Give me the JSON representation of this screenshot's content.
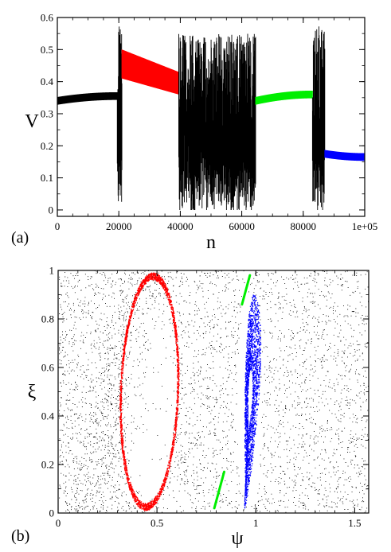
{
  "chart_data": [
    {
      "type": "line",
      "panel_label": "(a)",
      "xlabel": "n",
      "ylabel": "V",
      "xlim": [
        0,
        100000
      ],
      "ylim": [
        -0.02,
        0.6
      ],
      "x_tick_labels": [
        "0",
        "20000",
        "40000",
        "60000",
        "80000",
        "1e+05"
      ],
      "x_ticks": [
        0,
        20000,
        40000,
        60000,
        80000,
        100000
      ],
      "y_tick_labels": [
        "0",
        "0.1",
        "0.2",
        "0.3",
        "0.4",
        "0.5",
        "0.6"
      ],
      "y_ticks": [
        0,
        0.1,
        0.2,
        0.3,
        0.4,
        0.5,
        0.6
      ],
      "grid": false,
      "series": [
        {
          "color": "#000000",
          "regime": "regular",
          "x_range": [
            0,
            19500
          ],
          "center": [
            0.34,
            0.355
          ],
          "amplitude": 0.012
        },
        {
          "color": "#000000",
          "regime": "chaotic",
          "x_range": [
            19500,
            21000
          ],
          "low": 0.02,
          "high": 0.58
        },
        {
          "color": "#ff0000",
          "regime": "regular",
          "x_range": [
            21000,
            39500
          ],
          "upper": [
            0.5,
            0.43
          ],
          "lower": [
            0.41,
            0.36
          ]
        },
        {
          "color": "#000000",
          "regime": "chaotic",
          "x_range": [
            39500,
            64500
          ],
          "low": 0.0,
          "high": 0.55
        },
        {
          "color": "#00ee00",
          "regime": "regular",
          "x_range": [
            64500,
            83000
          ],
          "center": [
            0.34,
            0.36
          ],
          "amplitude": 0.012
        },
        {
          "color": "#000000",
          "regime": "chaotic",
          "x_range": [
            83000,
            87000
          ],
          "low": 0.0,
          "high": 0.58
        },
        {
          "color": "#0000ff",
          "regime": "regular",
          "x_range": [
            87000,
            100000
          ],
          "center": [
            0.175,
            0.165
          ],
          "amplitude": 0.012
        }
      ]
    },
    {
      "type": "scatter",
      "panel_label": "(b)",
      "xlabel": "ψ",
      "ylabel": "ξ",
      "xlim": [
        0,
        1.571
      ],
      "ylim": [
        0,
        1
      ],
      "x_tick_labels": [
        "0",
        "0.5",
        "1",
        "1.5"
      ],
      "x_ticks": [
        0,
        0.5,
        1,
        1.5
      ],
      "y_tick_labels": [
        "0",
        "0.2",
        "0.4",
        "0.6",
        "0.8",
        "1"
      ],
      "y_ticks": [
        0,
        0.2,
        0.4,
        0.6,
        0.8,
        1
      ],
      "grid": false,
      "series": [
        {
          "color": "#000000",
          "shape": "sea",
          "density": 9000
        },
        {
          "color": "#ff0000",
          "shape": "ellipse",
          "center": [
            0.46,
            0.5
          ],
          "semi_axes": [
            0.15,
            0.49
          ],
          "tilt_deg": 8,
          "ring_width": 0.06
        },
        {
          "color": "#0000ff",
          "shape": "lens",
          "center": [
            0.965,
            0.46
          ],
          "semi_axes": [
            0.05,
            0.44
          ],
          "tilt_deg": 10,
          "ring_width": 0.7
        },
        {
          "color": "#00ee00",
          "shape": "segments",
          "segments": [
            [
              [
                0.79,
                0.02
              ],
              [
                0.84,
                0.17
              ]
            ],
            [
              [
                0.93,
                0.86
              ],
              [
                0.97,
                0.98
              ]
            ]
          ]
        }
      ]
    }
  ]
}
